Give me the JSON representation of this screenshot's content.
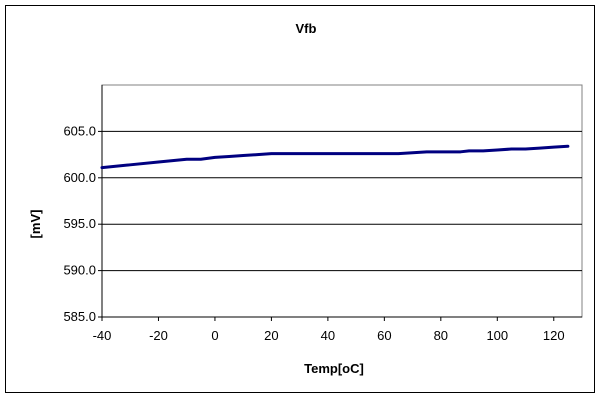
{
  "chart_data": {
    "type": "line",
    "title": "Vfb",
    "xlabel": "Temp[oC]",
    "ylabel": "[mV]",
    "xlim": [
      -40,
      130
    ],
    "ylim": [
      585.0,
      610.0
    ],
    "x_ticks": [
      "-40",
      "-20",
      "0",
      "20",
      "40",
      "60",
      "80",
      "100",
      "120"
    ],
    "y_ticks": [
      "585.0",
      "590.0",
      "595.0",
      "600.0",
      "605.0"
    ],
    "grid": "horizontal",
    "legend": "none",
    "series": [
      {
        "name": "",
        "color": "#000080",
        "x": [
          -40,
          -30,
          -20,
          -10,
          -5,
          0,
          5,
          10,
          15,
          20,
          30,
          40,
          50,
          60,
          65,
          70,
          75,
          80,
          87,
          90,
          95,
          100,
          105,
          110,
          115,
          120,
          125
        ],
        "y": [
          601.1,
          601.4,
          601.7,
          602.0,
          602.0,
          602.2,
          602.3,
          602.4,
          602.5,
          602.6,
          602.6,
          602.6,
          602.6,
          602.6,
          602.6,
          602.7,
          602.8,
          602.8,
          602.8,
          602.9,
          602.9,
          603.0,
          603.1,
          603.1,
          603.2,
          603.3,
          603.4
        ]
      }
    ]
  }
}
